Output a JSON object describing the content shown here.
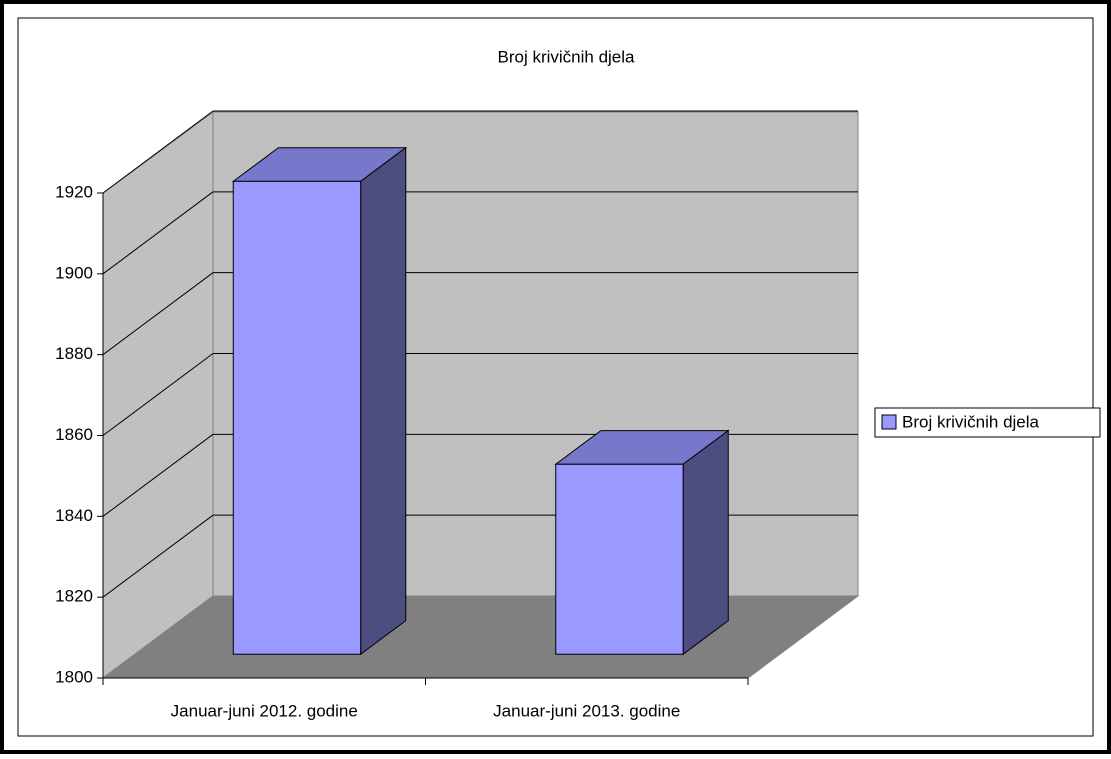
{
  "chart_data": {
    "type": "bar3d",
    "title": "Broj krivičnih djela",
    "categories": [
      "Januar-juni 2012. godine",
      "Januar-juni 2013. godine"
    ],
    "series": [
      {
        "name": "Broj krivičnih djela",
        "color": "#9999ff",
        "values": [
          1917,
          1847
        ]
      }
    ],
    "ylim": [
      1800,
      1920
    ],
    "yticks": [
      1800,
      1820,
      1840,
      1860,
      1880,
      1900,
      1920
    ],
    "grid": true,
    "legend": "right"
  }
}
